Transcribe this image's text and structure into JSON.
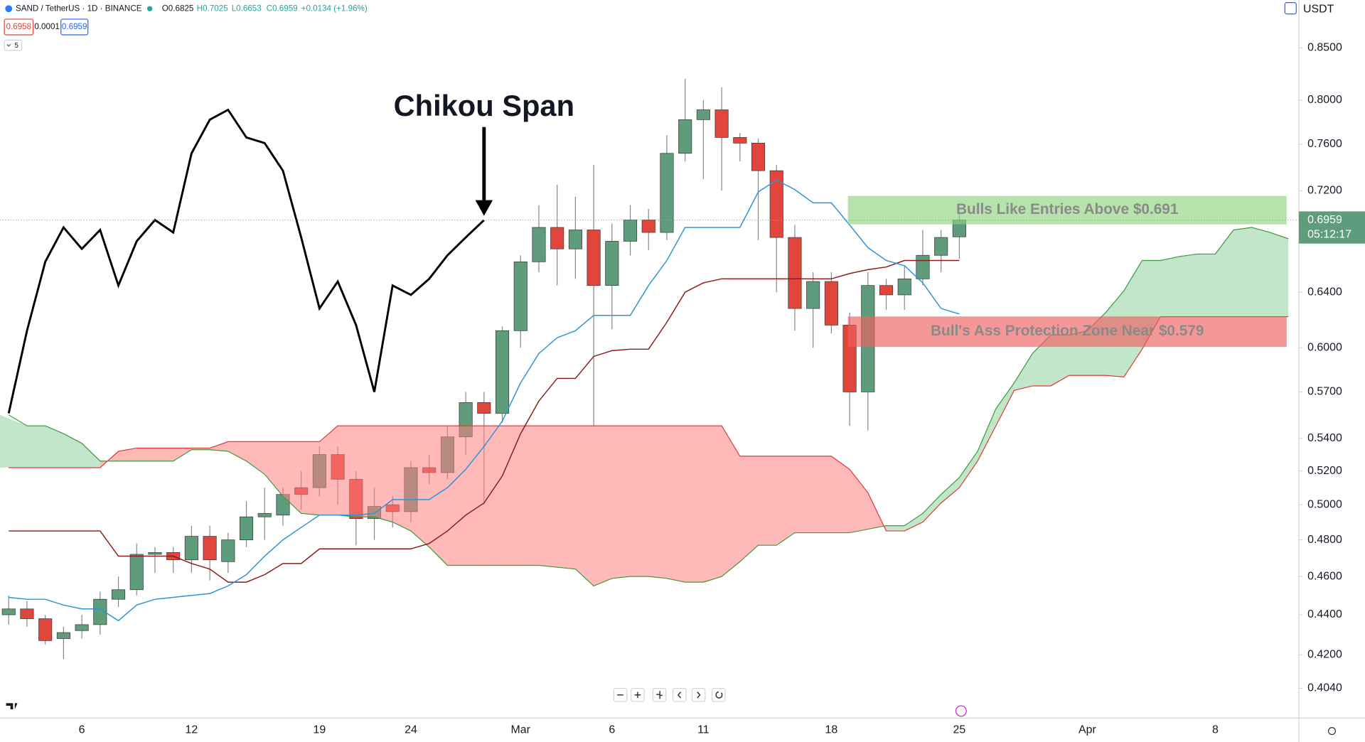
{
  "chart_data": {
    "type": "candlestick",
    "symbol": "SAND / TetherUS · 1D · BINANCE",
    "ohlc_text": [
      "O0.6825",
      "H0.7025",
      "L0.6653",
      "C0.6959",
      "+0.0134 (+1.96%)"
    ],
    "bid": 0.6958,
    "spread": 0.0001,
    "ask": 0.6959,
    "indicator_count": 5,
    "currency": "USDT",
    "last_price": 0.6959,
    "countdown": "05:12:17",
    "log_scale": true,
    "grid": false,
    "ylim": [
      0.3903,
      0.8986
    ],
    "yticks": [
      {
        "value": 0.85,
        "label": "0.8500"
      },
      {
        "value": 0.8,
        "label": "0.8000"
      },
      {
        "value": 0.76,
        "label": "0.7600"
      },
      {
        "value": 0.72,
        "label": "0.7200"
      },
      {
        "value": 0.64,
        "label": "0.6400"
      },
      {
        "value": 0.6,
        "label": "0.6000"
      },
      {
        "value": 0.57,
        "label": "0.5700"
      },
      {
        "value": 0.54,
        "label": "0.5400"
      },
      {
        "value": 0.52,
        "label": "0.5200"
      },
      {
        "value": 0.5,
        "label": "0.5000"
      },
      {
        "value": 0.48,
        "label": "0.4800"
      },
      {
        "value": 0.46,
        "label": "0.4600"
      },
      {
        "value": 0.44,
        "label": "0.4400"
      },
      {
        "value": 0.42,
        "label": "0.4200"
      },
      {
        "value": 0.404,
        "label": "0.4040"
      }
    ],
    "categories": [
      null,
      null,
      null,
      null,
      "6",
      null,
      null,
      null,
      null,
      null,
      "12",
      null,
      null,
      null,
      null,
      null,
      null,
      "19",
      null,
      null,
      null,
      null,
      "24",
      null,
      null,
      null,
      null,
      null,
      "Mar",
      null,
      null,
      null,
      null,
      "6",
      null,
      null,
      null,
      null,
      "11",
      null,
      null,
      null,
      null,
      null,
      null,
      "18",
      null,
      null,
      null,
      null,
      null,
      null,
      "25",
      null,
      null,
      null,
      null,
      null,
      null,
      "Apr",
      null,
      null,
      null,
      null,
      null,
      null,
      "8",
      null,
      null,
      null,
      null
    ],
    "up_color": "#5f9c7c",
    "down_color": "#e0463c",
    "open": [
      0.44,
      0.443,
      0.438,
      0.428,
      0.432,
      0.435,
      0.448,
      0.453,
      0.472,
      0.473,
      0.469,
      0.482,
      0.468,
      0.48,
      0.493,
      0.494,
      0.51,
      0.51,
      0.53,
      0.515,
      0.492,
      0.5,
      0.496,
      0.522,
      0.519,
      0.541,
      0.563,
      0.556,
      0.612,
      0.663,
      0.69,
      0.673,
      0.688,
      0.645,
      0.679,
      0.696,
      0.686,
      0.752,
      0.782,
      0.791,
      0.766,
      0.761,
      0.737,
      0.682,
      0.628,
      0.648,
      0.616,
      0.57,
      0.645,
      0.638,
      0.65,
      0.668,
      0.6825,
      null,
      null,
      null,
      null,
      null,
      null,
      null,
      null,
      null,
      null,
      null,
      null,
      null,
      null,
      null,
      null,
      null,
      null
    ],
    "high": [
      0.45,
      0.447,
      0.44,
      0.434,
      0.44,
      0.452,
      0.46,
      0.478,
      0.476,
      0.476,
      0.488,
      0.488,
      0.484,
      0.502,
      0.51,
      0.51,
      0.52,
      0.535,
      0.535,
      0.52,
      0.51,
      0.505,
      0.526,
      0.53,
      0.548,
      0.57,
      0.57,
      0.615,
      0.668,
      0.708,
      0.725,
      0.715,
      0.742,
      0.693,
      0.708,
      0.705,
      0.768,
      0.82,
      0.8,
      0.812,
      0.77,
      0.765,
      0.742,
      0.692,
      0.655,
      0.655,
      0.625,
      0.655,
      0.65,
      0.66,
      0.688,
      0.688,
      0.7025,
      null,
      null,
      null,
      null,
      null,
      null,
      null,
      null,
      null,
      null,
      null,
      null,
      null,
      null,
      null,
      null,
      null,
      null
    ],
    "low": [
      0.435,
      0.434,
      0.425,
      0.418,
      0.428,
      0.43,
      0.444,
      0.45,
      0.462,
      0.462,
      0.462,
      0.458,
      0.462,
      0.476,
      0.48,
      0.488,
      0.497,
      0.505,
      0.5,
      0.477,
      0.48,
      0.487,
      0.49,
      0.512,
      0.515,
      0.53,
      0.5,
      0.55,
      0.6,
      0.655,
      0.645,
      0.65,
      0.548,
      0.613,
      0.668,
      0.672,
      0.68,
      0.745,
      0.73,
      0.72,
      0.745,
      0.68,
      0.64,
      0.612,
      0.6,
      0.61,
      0.548,
      0.545,
      0.627,
      0.627,
      0.645,
      0.655,
      0.6653,
      null,
      null,
      null,
      null,
      null,
      null,
      null,
      null,
      null,
      null,
      null,
      null,
      null,
      null,
      null,
      null,
      null,
      null
    ],
    "close": [
      0.443,
      0.438,
      0.427,
      0.431,
      0.435,
      0.448,
      0.453,
      0.472,
      0.473,
      0.469,
      0.482,
      0.469,
      0.48,
      0.493,
      0.495,
      0.506,
      0.506,
      0.53,
      0.515,
      0.492,
      0.499,
      0.496,
      0.522,
      0.519,
      0.541,
      0.563,
      0.556,
      0.612,
      0.663,
      0.69,
      0.673,
      0.688,
      0.645,
      0.679,
      0.696,
      0.686,
      0.752,
      0.782,
      0.791,
      0.766,
      0.761,
      0.737,
      0.682,
      0.628,
      0.648,
      0.616,
      0.57,
      0.645,
      0.638,
      0.65,
      0.668,
      0.682,
      0.6959,
      null,
      null,
      null,
      null,
      null,
      null,
      null,
      null,
      null,
      null,
      null,
      null,
      null,
      null,
      null,
      null,
      null,
      null
    ],
    "tenkan": {
      "color": "#2e93d6",
      "values": [
        0.449,
        0.448,
        0.448,
        0.445,
        0.443,
        0.443,
        0.437,
        0.445,
        0.448,
        0.449,
        0.45,
        0.451,
        0.455,
        0.461,
        0.471,
        0.48,
        0.487,
        0.494,
        0.494,
        0.494,
        0.495,
        0.503,
        0.503,
        0.503,
        0.51,
        0.521,
        0.535,
        0.551,
        0.576,
        0.596,
        0.607,
        0.612,
        0.623,
        0.623,
        0.623,
        0.645,
        0.664,
        0.69,
        0.69,
        0.69,
        0.69,
        0.719,
        0.729,
        0.721,
        0.71,
        0.71,
        0.692,
        0.674,
        0.664,
        0.66,
        0.647,
        0.628,
        0.624,
        null,
        null,
        null,
        null,
        null,
        null,
        null,
        null,
        null,
        null,
        null,
        null,
        null,
        null,
        null,
        null,
        null,
        null
      ]
    },
    "kijun": {
      "color": "#8b1a1a",
      "values": [
        0.485,
        0.485,
        0.485,
        0.485,
        0.485,
        0.485,
        0.471,
        0.471,
        0.471,
        0.471,
        0.467,
        0.464,
        0.457,
        0.457,
        0.461,
        0.467,
        0.467,
        0.475,
        0.475,
        0.475,
        0.475,
        0.475,
        0.475,
        0.478,
        0.485,
        0.494,
        0.501,
        0.517,
        0.543,
        0.564,
        0.579,
        0.579,
        0.594,
        0.598,
        0.599,
        0.599,
        0.618,
        0.64,
        0.647,
        0.65,
        0.65,
        0.65,
        0.65,
        0.65,
        0.65,
        0.65,
        0.654,
        0.657,
        0.659,
        0.664,
        0.664,
        0.664,
        0.664,
        null,
        null,
        null,
        null,
        null,
        null,
        null,
        null,
        null,
        null,
        null,
        null,
        null,
        null,
        null,
        null,
        null,
        null
      ]
    },
    "chikou": {
      "color": "#000000",
      "values": [
        0.556,
        0.612,
        0.663,
        0.69,
        0.673,
        0.688,
        0.645,
        0.679,
        0.696,
        0.686,
        0.752,
        0.782,
        0.791,
        0.766,
        0.761,
        0.737,
        0.682,
        0.628,
        0.648,
        0.616,
        0.57,
        0.645,
        0.638,
        0.65,
        0.668,
        0.682,
        0.6959,
        null,
        null,
        null,
        null,
        null,
        null,
        null,
        null,
        null,
        null,
        null,
        null,
        null,
        null,
        null,
        null,
        null,
        null,
        null,
        null,
        null,
        null,
        null,
        null,
        null,
        null,
        null,
        null,
        null,
        null,
        null,
        null,
        null,
        null,
        null,
        null,
        null,
        null,
        null,
        null,
        null,
        null,
        null,
        null
      ]
    },
    "senkou_a": {
      "color": "#3f9a3f",
      "fill": "#8fd19e",
      "values": [
        0.555,
        0.548,
        0.548,
        0.543,
        0.537,
        0.526,
        0.526,
        0.526,
        0.526,
        0.526,
        0.533,
        0.533,
        0.532,
        0.526,
        0.518,
        0.505,
        0.495,
        0.494,
        0.494,
        0.493,
        0.493,
        0.49,
        0.485,
        0.476,
        0.466,
        0.466,
        0.466,
        0.466,
        0.466,
        0.466,
        0.465,
        0.464,
        0.455,
        0.459,
        0.46,
        0.46,
        0.459,
        0.457,
        0.457,
        0.46,
        0.468,
        0.477,
        0.477,
        0.484,
        0.484,
        0.484,
        0.484,
        0.486,
        0.488,
        0.488,
        0.495,
        0.506,
        0.516,
        0.532,
        0.559,
        0.576,
        0.596,
        0.609,
        0.609,
        0.612,
        0.625,
        0.641,
        0.664,
        0.664,
        0.667,
        0.669,
        0.669,
        0.688,
        0.69,
        0.686,
        0.681
      ]
    },
    "senkou_b": {
      "color": "#e03a3a",
      "fill": "#ff7f7f",
      "values": [
        0.522,
        0.522,
        0.522,
        0.522,
        0.522,
        0.522,
        0.532,
        0.534,
        0.534,
        0.534,
        0.534,
        0.534,
        0.538,
        0.538,
        0.538,
        0.538,
        0.538,
        0.538,
        0.548,
        0.548,
        0.548,
        0.548,
        0.548,
        0.548,
        0.548,
        0.548,
        0.548,
        0.548,
        0.548,
        0.548,
        0.548,
        0.548,
        0.548,
        0.548,
        0.548,
        0.548,
        0.548,
        0.548,
        0.548,
        0.548,
        0.529,
        0.529,
        0.529,
        0.529,
        0.529,
        0.529,
        0.521,
        0.507,
        0.485,
        0.485,
        0.49,
        0.501,
        0.51,
        0.526,
        0.548,
        0.571,
        0.574,
        0.574,
        0.581,
        0.581,
        0.581,
        0.58,
        0.599,
        0.622,
        0.622,
        0.622,
        0.622,
        0.622,
        0.622,
        0.622,
        0.622
      ]
    },
    "annotation": "Chikou Span",
    "zones": [
      {
        "text": "Bulls Like Entries Above $0.691",
        "color": "#8fd27e",
        "range": [
          0.6925,
          0.7157
        ]
      },
      {
        "text": "Bull's Ass Protection Zone Near $0.579",
        "color": "#ef5f5f",
        "range": [
          0.6006,
          0.6222
        ]
      }
    ]
  }
}
